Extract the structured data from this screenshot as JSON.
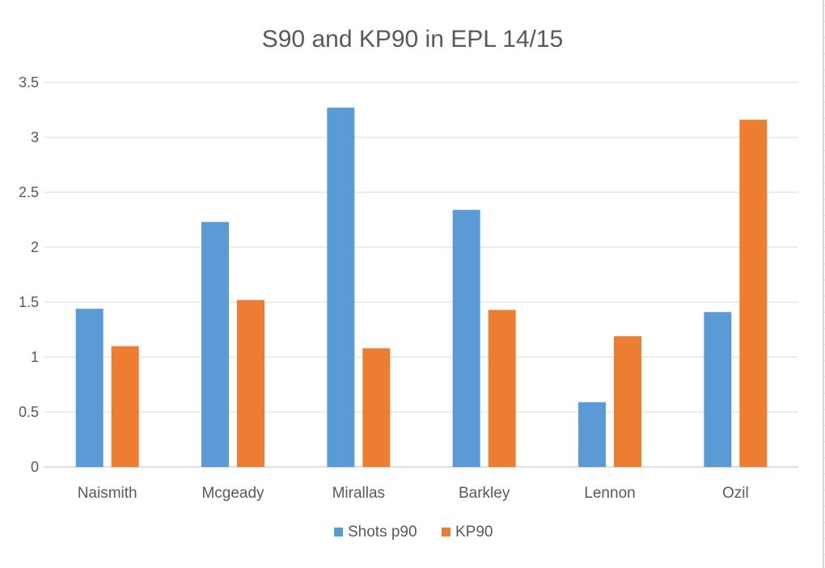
{
  "chart_data": {
    "type": "bar",
    "title": "S90 and KP90 in EPL 14/15",
    "xlabel": "",
    "ylabel": "",
    "categories": [
      "Naismith",
      "Mcgeady",
      "Mirallas",
      "Barkley",
      "Lennon",
      "Ozil"
    ],
    "series": [
      {
        "name": "Shots p90",
        "color": "#5b9bd5",
        "values": [
          1.44,
          2.23,
          3.27,
          2.34,
          0.59,
          1.41
        ]
      },
      {
        "name": "KP90",
        "color": "#ed7d31",
        "values": [
          1.1,
          1.52,
          1.08,
          1.43,
          1.19,
          3.16
        ]
      }
    ],
    "ylim": [
      0,
      3.5
    ],
    "yticks": [
      "0",
      "0.5",
      "1",
      "1.5",
      "2",
      "2.5",
      "3",
      "3.5"
    ],
    "grid": true,
    "legend_position": "bottom"
  }
}
